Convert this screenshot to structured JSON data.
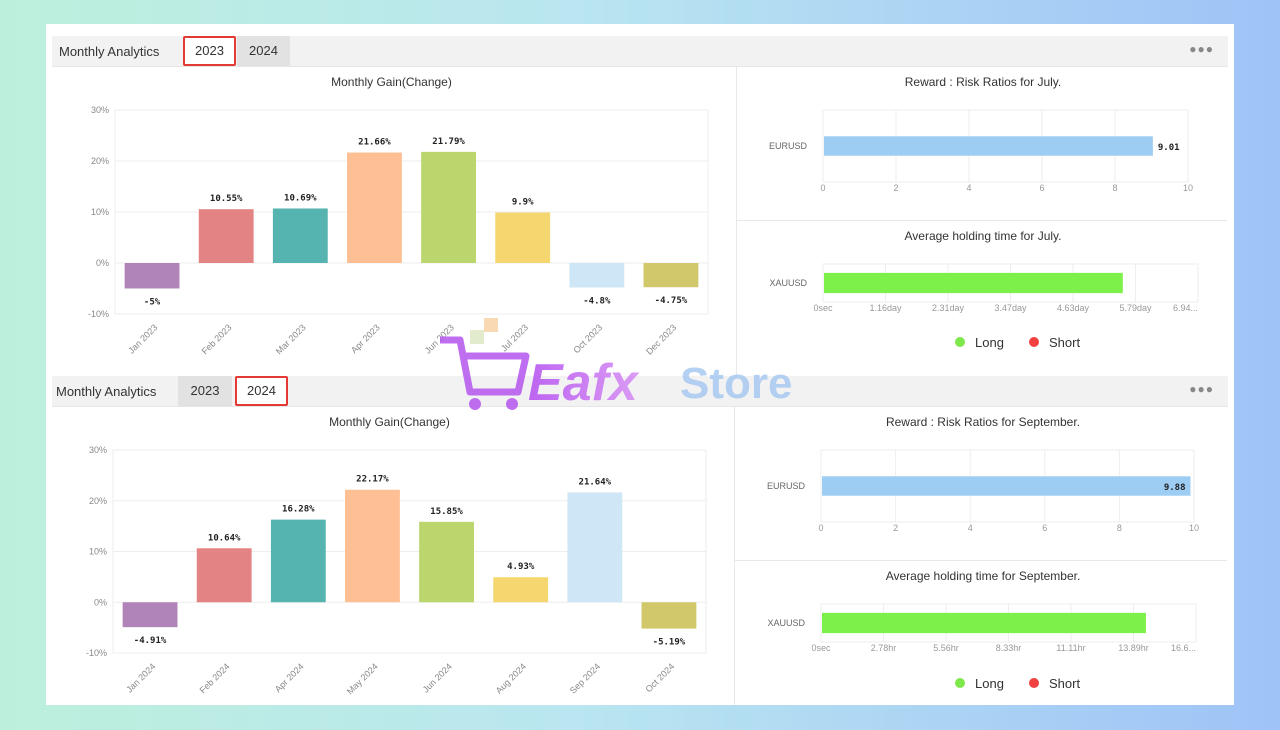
{
  "panels": [
    {
      "header_title": "Monthly Analytics",
      "tabs": [
        {
          "label": "2023",
          "active": true
        },
        {
          "label": "2024",
          "active": false
        }
      ],
      "menu_icon": "more-dots-icon",
      "legend": [
        {
          "label": "Long",
          "color": "#7ee84a"
        },
        {
          "label": "Short",
          "color": "#f04040"
        }
      ]
    },
    {
      "header_title": "Monthly Analytics",
      "tabs": [
        {
          "label": "2023",
          "active": false
        },
        {
          "label": "2024",
          "active": true
        }
      ],
      "menu_icon": "more-dots-icon",
      "legend": [
        {
          "label": "Long",
          "color": "#7ee84a"
        },
        {
          "label": "Short",
          "color": "#f04040"
        }
      ]
    }
  ],
  "watermark": {
    "text_a": "Eafx",
    "text_b": "Store",
    "icon": "shopping-cart-icon"
  },
  "chart_data": [
    {
      "type": "bar",
      "title": "Monthly Gain(Change)",
      "categories": [
        "Jan 2023",
        "Feb 2023",
        "Mar 2023",
        "Apr 2023",
        "Jun 2023",
        "Jul 2023",
        "Oct 2023",
        "Dec 2023"
      ],
      "values": [
        -5,
        10.55,
        10.69,
        21.66,
        21.79,
        9.9,
        -4.8,
        -4.75
      ],
      "data_labels": [
        "-5%",
        "10.55%",
        "10.69%",
        "21.66%",
        "21.79%",
        "9.9%",
        "-4.8%",
        "-4.75%"
      ],
      "colors": [
        "#b084b8",
        "#e38383",
        "#56b4b0",
        "#ffbf94",
        "#bcd66e",
        "#f5d66f",
        "#cfe6f7",
        "#d0c86a"
      ],
      "ylim": [
        -10,
        30
      ],
      "yticks": [
        "-10%",
        "0%",
        "10%",
        "20%",
        "30%"
      ],
      "grid": true
    },
    {
      "type": "bar",
      "orientation": "horizontal",
      "title": "Reward : Risk Ratios for July.",
      "categories": [
        "EURUSD"
      ],
      "values": [
        9.01
      ],
      "data_labels": [
        "9.01"
      ],
      "colors": [
        "#9ecdf3"
      ],
      "xlim": [
        0,
        10
      ],
      "xticks": [
        "0",
        "2",
        "4",
        "6",
        "8",
        "10"
      ],
      "grid": true
    },
    {
      "type": "bar",
      "orientation": "horizontal",
      "title": "Average holding time for July.",
      "categories": [
        "XAUUSD"
      ],
      "values": [
        5.53
      ],
      "unit": "day",
      "colors": [
        "#7ef04a"
      ],
      "xlim": [
        0,
        6.94
      ],
      "xticks": [
        "0sec",
        "1.16day",
        "2.31day",
        "3.47day",
        "4.63day",
        "5.79day",
        "6.94..."
      ],
      "grid": true
    },
    {
      "type": "bar",
      "title": "Monthly Gain(Change)",
      "categories": [
        "Jan 2024",
        "Feb 2024",
        "Apr 2024",
        "May 2024",
        "Jun 2024",
        "Aug 2024",
        "Sep 2024",
        "Oct 2024"
      ],
      "values": [
        -4.91,
        10.64,
        16.28,
        22.17,
        15.85,
        4.93,
        21.64,
        -5.19
      ],
      "data_labels": [
        "-4.91%",
        "10.64%",
        "16.28%",
        "22.17%",
        "15.85%",
        "4.93%",
        "21.64%",
        "-5.19%"
      ],
      "colors": [
        "#b084b8",
        "#e38383",
        "#56b4b0",
        "#ffbf94",
        "#bcd66e",
        "#f5d66f",
        "#cfe6f7",
        "#d0c86a"
      ],
      "ylim": [
        -10,
        30
      ],
      "yticks": [
        "-10%",
        "0%",
        "10%",
        "20%",
        "30%"
      ],
      "grid": true
    },
    {
      "type": "bar",
      "orientation": "horizontal",
      "title": "Reward : Risk Ratios for September.",
      "categories": [
        "EURUSD"
      ],
      "values": [
        9.88
      ],
      "data_labels": [
        "9.88"
      ],
      "colors": [
        "#9ecdf3"
      ],
      "xlim": [
        0,
        10
      ],
      "xticks": [
        "0",
        "2",
        "4",
        "6",
        "8",
        "10"
      ],
      "grid": true
    },
    {
      "type": "bar",
      "orientation": "horizontal",
      "title": "Average holding time for September.",
      "categories": [
        "XAUUSD"
      ],
      "values": [
        14.4
      ],
      "unit": "hr",
      "colors": [
        "#7ef04a"
      ],
      "xlim": [
        0,
        16.67
      ],
      "xticks": [
        "0sec",
        "2.78hr",
        "5.56hr",
        "8.33hr",
        "11.11hr",
        "13.89hr",
        "16.6..."
      ],
      "grid": true
    }
  ]
}
